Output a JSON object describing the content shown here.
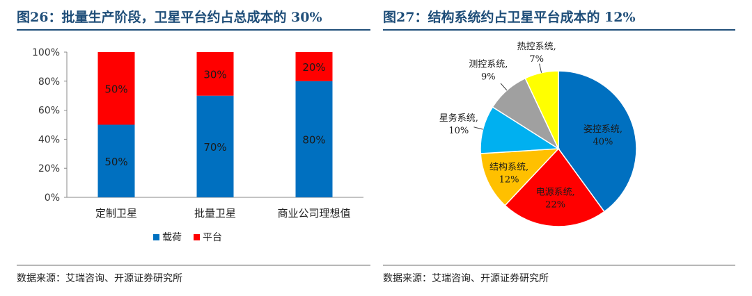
{
  "left": {
    "title": "图26：批量生产阶段，卫星平台约占总成本的 30%",
    "source": "数据来源：艾瑞咨询、开源证券研究所"
  },
  "right": {
    "title": "图27：结构系统约占卫星平台成本的 12%",
    "source": "数据来源：艾瑞咨询、开源证券研究所"
  },
  "chart_data": [
    {
      "type": "bar",
      "stacked": true,
      "categories": [
        "定制卫星",
        "批量卫星",
        "商业公司理想值"
      ],
      "series": [
        {
          "name": "载荷",
          "values": [
            50,
            70,
            80
          ],
          "color": "#0070C0",
          "labels": [
            "50%",
            "70%",
            "80%"
          ]
        },
        {
          "name": "平台",
          "values": [
            50,
            30,
            20
          ],
          "color": "#FF0000",
          "labels": [
            "50%",
            "30%",
            "20%"
          ]
        }
      ],
      "yticks": [
        "0%",
        "20%",
        "40%",
        "60%",
        "80%",
        "100%"
      ],
      "ylim": [
        0,
        100
      ],
      "legend_position": "bottom",
      "grid": false
    },
    {
      "type": "pie",
      "slices": [
        {
          "name": "姿控系统,",
          "value": 40,
          "label": "40%",
          "color": "#0070C0"
        },
        {
          "name": "电源系统,",
          "value": 22,
          "label": "22%",
          "color": "#FF0000"
        },
        {
          "name": "结构系统,",
          "value": 12,
          "label": "12%",
          "color": "#FFC000"
        },
        {
          "name": "星务系统,",
          "value": 10,
          "label": "10%",
          "color": "#00B0F0"
        },
        {
          "name": "测控系统,",
          "value": 9,
          "label": "9%",
          "color": "#A0A0A0"
        },
        {
          "name": "热控系统,",
          "value": 7,
          "label": "7%",
          "color": "#FFFF00"
        }
      ]
    }
  ]
}
